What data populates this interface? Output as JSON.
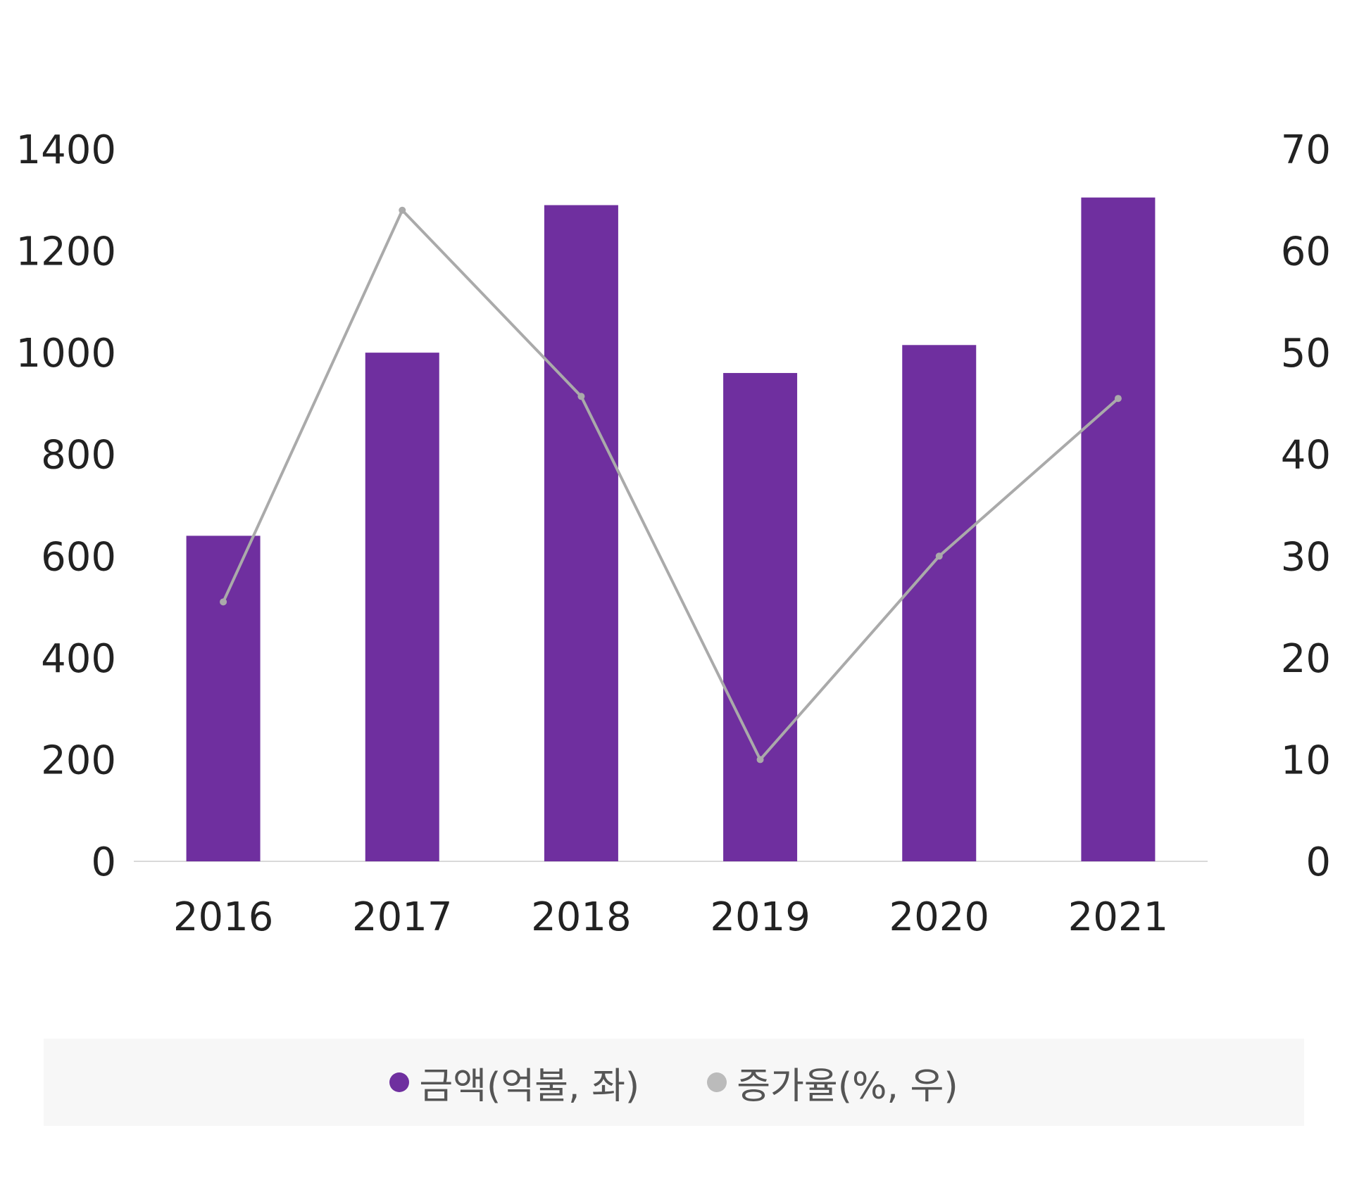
{
  "chart_data": {
    "type": "bar",
    "categories": [
      "2016",
      "2017",
      "2018",
      "2019",
      "2020",
      "2021"
    ],
    "series": [
      {
        "name": "금액(억불, 좌)",
        "type": "bar",
        "axis": "left",
        "color": "#6f2f9f",
        "values": [
          640,
          1000,
          1290,
          960,
          1015,
          1305
        ]
      },
      {
        "name": "증가율(%, 우)",
        "type": "line",
        "axis": "right",
        "color": "#aaaaaa",
        "values": [
          25.5,
          64,
          45.7,
          10,
          30,
          45.5
        ]
      }
    ],
    "y_left": {
      "min": 0,
      "max": 1400,
      "ticks": [
        "0",
        "200",
        "400",
        "600",
        "800",
        "1000",
        "1200",
        "1400"
      ]
    },
    "y_right": {
      "min": 0,
      "max": 70,
      "ticks": [
        "0",
        "10",
        "20",
        "30",
        "40",
        "50",
        "60",
        "70"
      ]
    },
    "grid": false,
    "legend": "bottom"
  }
}
